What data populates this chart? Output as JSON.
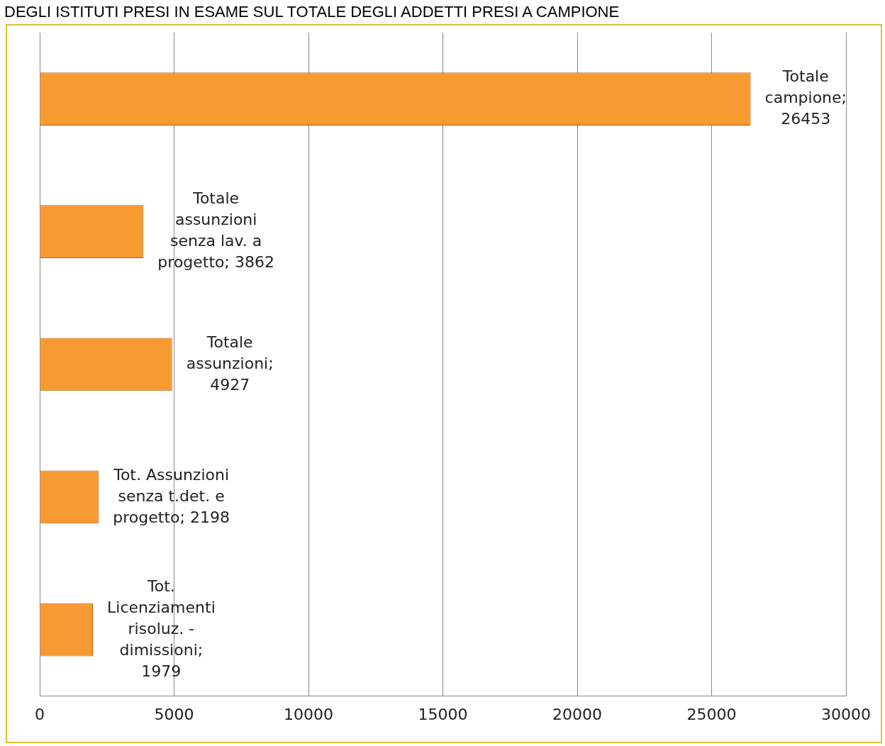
{
  "chart_data": {
    "type": "bar",
    "orientation": "horizontal",
    "title": "DEGLI ISTITUTI PRESI IN ESAME SUL TOTALE DEGLI ADDETTI PRESI A CAMPIONE",
    "categories": [
      null,
      null,
      null,
      null,
      null
    ],
    "values": [
      26453,
      3862,
      4927,
      2198,
      1979
    ],
    "value_labels": [
      "Totale campione; 26453",
      "Totale assunzioni senza lav. a progetto; 3862",
      "Totale assunzioni; 4927",
      "Tot. Assunzioni senza t.det. e progetto; 2198",
      "Tot. Licenziamenti risoluz. - dimissioni; 1979"
    ],
    "color": "#f79a32",
    "xlim": [
      0,
      30000
    ],
    "xticks": [
      0,
      5000,
      10000,
      15000,
      20000,
      25000,
      30000
    ],
    "grid": "x",
    "tick_labels": "x",
    "legend": false
  }
}
